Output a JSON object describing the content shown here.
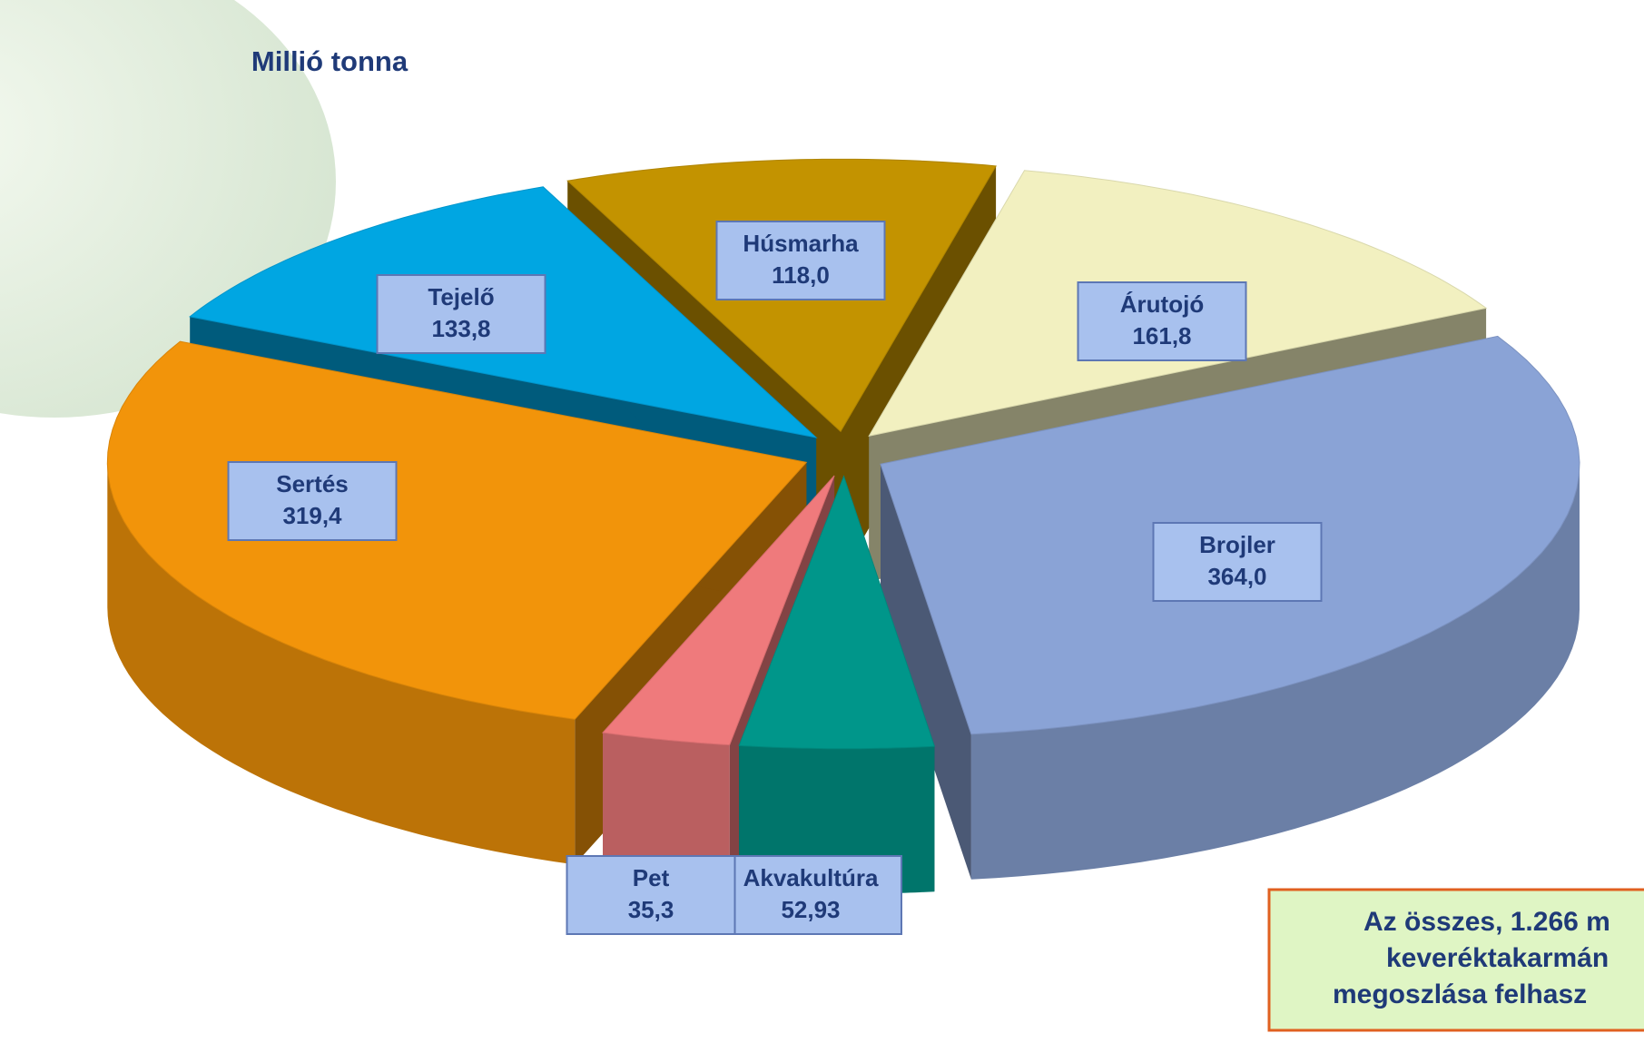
{
  "chart_data": {
    "type": "pie3d",
    "title": "Millió tonna",
    "categories": [
      "Húsmarha",
      "Árutojó",
      "Brojler",
      "Akvakultúra",
      "Pet",
      "Sertés",
      "Tejelő"
    ],
    "values": [
      118.0,
      161.8,
      364.0,
      52.93,
      35.3,
      319.4,
      133.8
    ],
    "value_labels": [
      "118,0",
      "161,8",
      "364,0",
      "52,93",
      "35,3",
      "319,4",
      "133,8"
    ],
    "colors": [
      "#c39300",
      "#f2f0c0",
      "#8aa3d6",
      "#00968a",
      "#ef7a7c",
      "#f2940a",
      "#00a6e2"
    ],
    "note_lines": [
      "Az összes, 1.266 m",
      "keveréktakarmán",
      "megoszlása felhasz"
    ]
  }
}
